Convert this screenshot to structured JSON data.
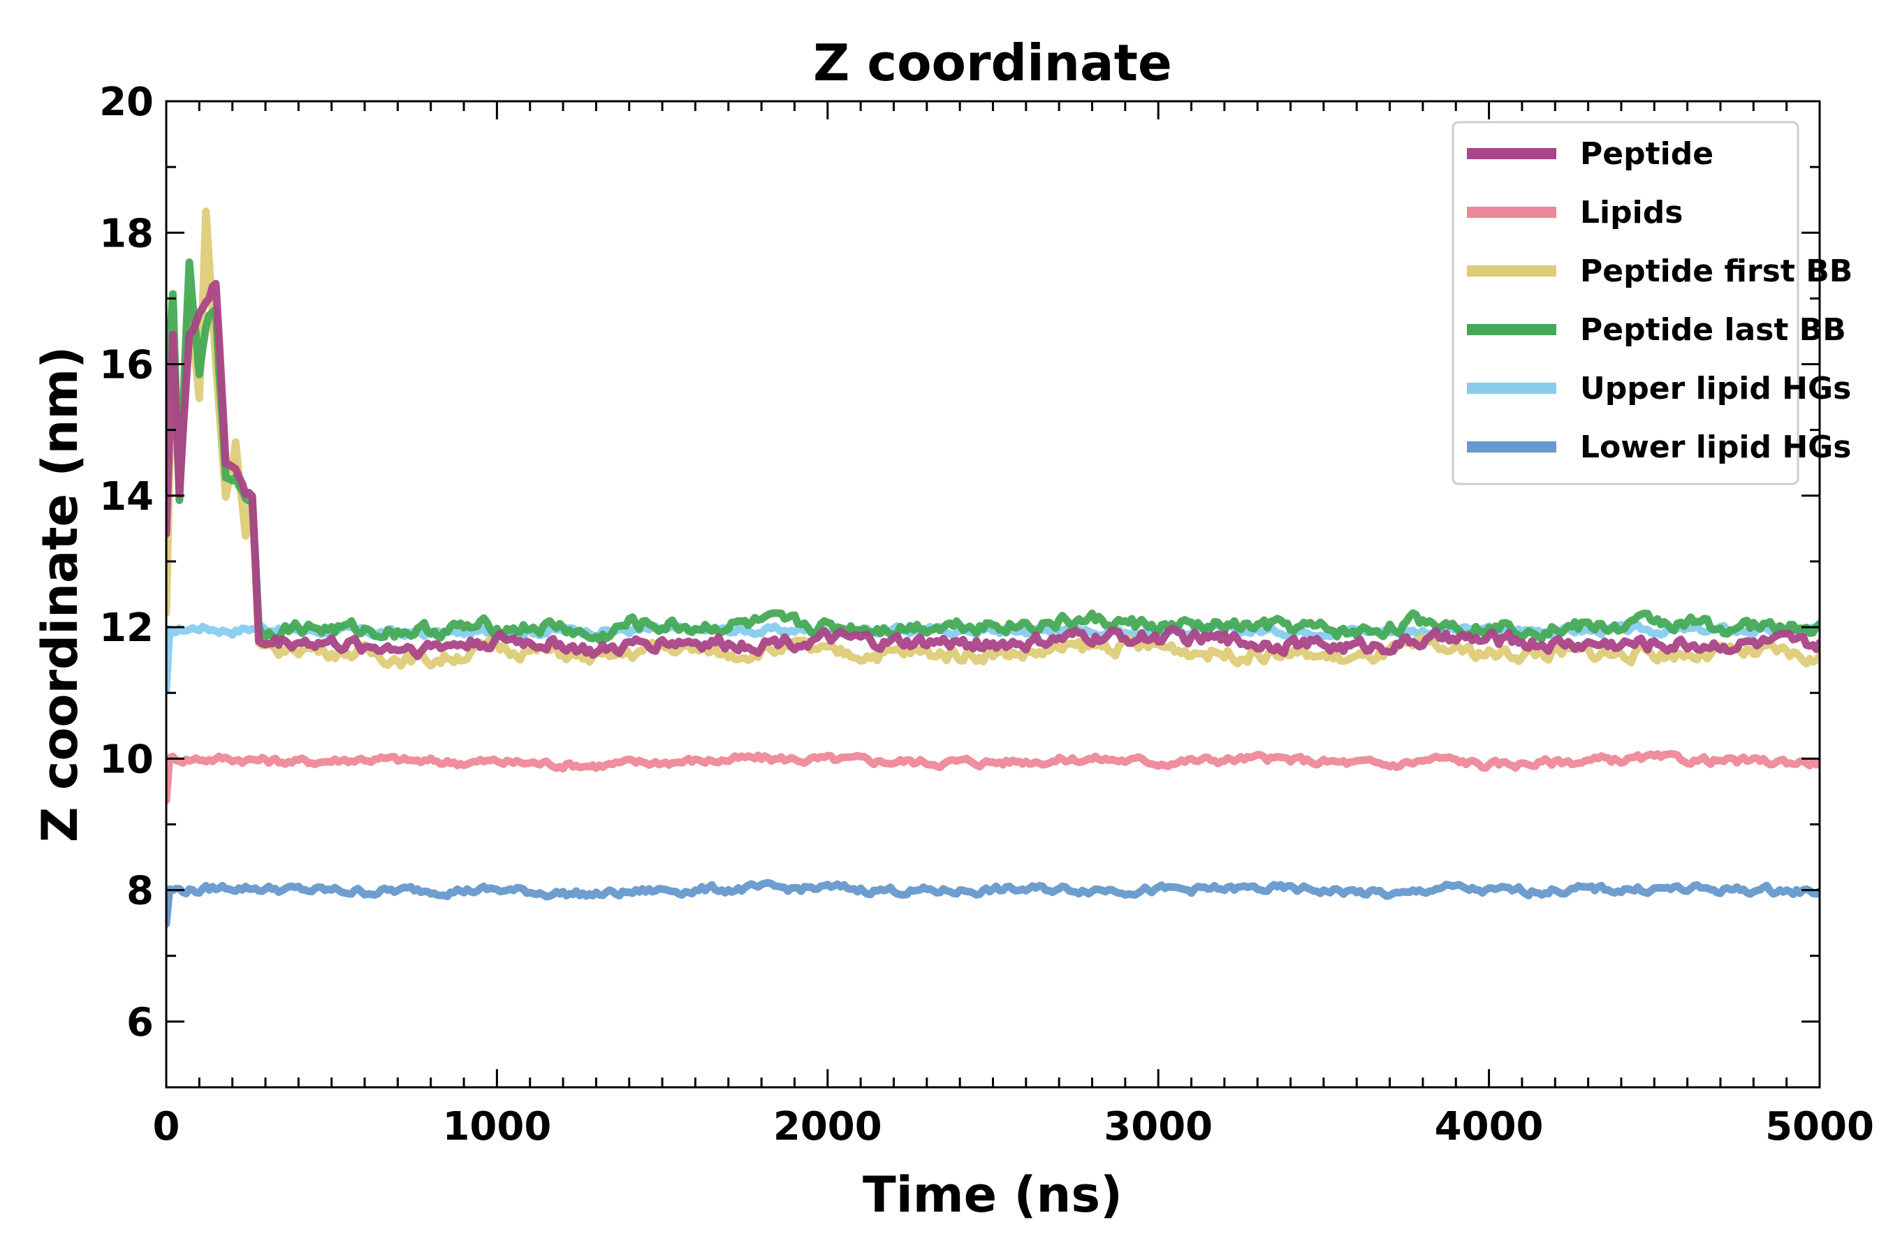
{
  "chart_data": {
    "type": "line",
    "title": "Z coordinate",
    "xlabel": "Time (ns)",
    "ylabel": "Z coordinate (nm)",
    "xlim": [
      0,
      5000
    ],
    "ylim": [
      5,
      20
    ],
    "x_ticks": [
      0,
      1000,
      2000,
      3000,
      4000,
      5000
    ],
    "y_ticks": [
      6,
      8,
      10,
      12,
      14,
      16,
      18,
      20
    ],
    "grid": false,
    "legend_position": "top-right",
    "series": [
      {
        "name": "Upper lipid HGs",
        "color": "#88ccee",
        "x": [
          0,
          10,
          40,
          100,
          200,
          280,
          400,
          800,
          1200,
          1600,
          2000,
          2400,
          2800,
          3200,
          3600,
          4000,
          4400,
          4800,
          5000
        ],
        "y": [
          11.0,
          11.9,
          11.95,
          12.0,
          11.95,
          12.0,
          11.95,
          11.9,
          11.95,
          11.95,
          11.95,
          11.95,
          11.95,
          11.95,
          11.95,
          11.95,
          11.95,
          11.95,
          11.95
        ]
      },
      {
        "name": "Lipids",
        "color": "#ee8899",
        "x": [
          0,
          10,
          100,
          200,
          400,
          600,
          800,
          1000,
          1300,
          1500,
          1800,
          2000,
          2300,
          2500,
          2800,
          3000,
          3300,
          3500,
          3700,
          3850,
          4000,
          4200,
          4500,
          4800,
          5000
        ],
        "y": [
          9.4,
          10.0,
          10.0,
          10.0,
          9.95,
          10.0,
          9.95,
          9.95,
          9.9,
          9.95,
          10.0,
          9.98,
          9.95,
          9.95,
          10.0,
          9.95,
          10.0,
          9.95,
          9.9,
          10.0,
          9.9,
          9.95,
          10.0,
          9.95,
          9.95
        ]
      },
      {
        "name": "Lower lipid HGs",
        "color": "#6699cc",
        "x": [
          0,
          10,
          100,
          200,
          400,
          600,
          800,
          1000,
          1300,
          1500,
          1800,
          2000,
          2300,
          2500,
          2800,
          3000,
          3300,
          3500,
          3750,
          3850,
          4000,
          4200,
          4500,
          4800,
          5000
        ],
        "y": [
          7.5,
          8.0,
          8.0,
          8.05,
          8.0,
          7.98,
          8.0,
          8.0,
          7.93,
          8.0,
          8.02,
          8.03,
          7.98,
          8.0,
          8.02,
          8.0,
          8.02,
          8.0,
          7.92,
          8.05,
          7.98,
          8.0,
          8.02,
          8.0,
          7.98
        ]
      },
      {
        "name": "Peptide first BB",
        "color": "#ddcc77",
        "x": [
          0,
          20,
          40,
          70,
          100,
          120,
          150,
          180,
          210,
          240,
          260,
          280,
          300,
          400,
          600,
          800,
          1000,
          1200,
          1300,
          1500,
          1700,
          1900,
          2000,
          2200,
          2400,
          2600,
          2800,
          3000,
          3200,
          3400,
          3600,
          3800,
          4000,
          4200,
          4400,
          4500,
          4700,
          4900,
          5000
        ],
        "y": [
          12.2,
          16.5,
          14.0,
          17.0,
          15.5,
          18.3,
          16.0,
          14.0,
          14.8,
          13.5,
          14.0,
          11.7,
          11.6,
          11.7,
          11.6,
          11.5,
          11.7,
          11.6,
          11.5,
          11.7,
          11.6,
          11.7,
          11.6,
          11.6,
          11.6,
          11.6,
          11.7,
          11.7,
          11.6,
          11.6,
          11.5,
          11.7,
          11.6,
          11.6,
          11.6,
          11.6,
          11.6,
          11.6,
          11.5
        ]
      },
      {
        "name": "Peptide last BB",
        "color": "#44aa55",
        "x": [
          0,
          20,
          40,
          70,
          100,
          120,
          150,
          180,
          210,
          240,
          260,
          280,
          300,
          400,
          600,
          800,
          1000,
          1200,
          1300,
          1400,
          1600,
          1800,
          2000,
          2200,
          2400,
          2600,
          2800,
          3000,
          3200,
          3400,
          3600,
          3800,
          4000,
          4200,
          4400,
          4500,
          4700,
          4900,
          5000
        ],
        "y": [
          15.5,
          17.0,
          14.0,
          17.5,
          15.8,
          16.5,
          16.9,
          14.2,
          14.3,
          14.0,
          14.0,
          12.0,
          11.95,
          12.0,
          11.95,
          11.95,
          12.0,
          12.0,
          11.8,
          12.05,
          12.0,
          12.05,
          12.0,
          12.0,
          12.05,
          12.05,
          12.1,
          12.0,
          12.0,
          12.0,
          11.9,
          12.1,
          12.0,
          12.0,
          12.0,
          12.1,
          12.0,
          12.0,
          11.95
        ]
      },
      {
        "name": "Peptide",
        "color": "#aa4488",
        "x": [
          0,
          20,
          40,
          70,
          100,
          120,
          150,
          180,
          210,
          240,
          260,
          280,
          300,
          400,
          600,
          800,
          1000,
          1200,
          1300,
          1500,
          1700,
          1900,
          2000,
          2200,
          2400,
          2600,
          2800,
          3000,
          3200,
          3400,
          3600,
          3800,
          4000,
          4200,
          4400,
          4500,
          4700,
          4900,
          5000
        ],
        "y": [
          13.5,
          16.5,
          14.0,
          16.5,
          16.8,
          17.0,
          17.2,
          14.5,
          14.5,
          14.0,
          14.0,
          11.8,
          11.75,
          11.8,
          11.7,
          11.7,
          11.8,
          11.75,
          11.6,
          11.8,
          11.75,
          11.8,
          11.8,
          11.75,
          11.75,
          11.75,
          11.85,
          11.85,
          11.8,
          11.75,
          11.7,
          11.8,
          11.8,
          11.75,
          11.75,
          11.75,
          11.75,
          11.75,
          11.7
        ]
      }
    ]
  },
  "legend": {
    "entries": [
      {
        "name": "Peptide",
        "color": "#aa4488"
      },
      {
        "name": "Lipids",
        "color": "#ee8899"
      },
      {
        "name": "Peptide first BB",
        "color": "#ddcc77"
      },
      {
        "name": "Peptide last BB",
        "color": "#44aa55"
      },
      {
        "name": "Upper lipid HGs",
        "color": "#88ccee"
      },
      {
        "name": "Lower lipid HGs",
        "color": "#6699cc"
      }
    ]
  }
}
